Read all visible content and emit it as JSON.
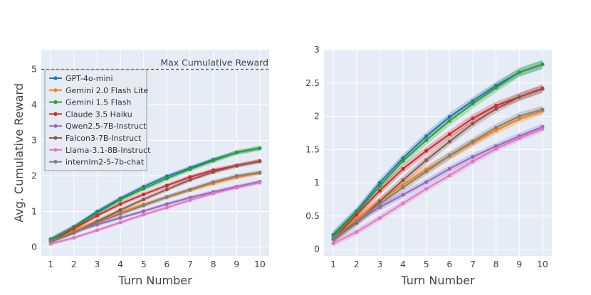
{
  "chart_data": [
    {
      "type": "line",
      "panel": "left",
      "xlabel": "Turn Number",
      "ylabel": "Avg. Cumulative Reward",
      "x": [
        1,
        2,
        3,
        4,
        5,
        6,
        7,
        8,
        9,
        10
      ],
      "xlim": [
        0.6,
        10.4
      ],
      "ylim": [
        -0.25,
        5.55
      ],
      "yticks": [
        0,
        1,
        2,
        3,
        4,
        5
      ],
      "xticks": [
        1,
        2,
        3,
        4,
        5,
        6,
        7,
        8,
        9,
        10
      ],
      "legend_position": "top-left",
      "reference_line": {
        "y": 5,
        "label": "Max Cumulative Reward"
      },
      "series_ref": "series"
    },
    {
      "type": "line",
      "panel": "right",
      "xlabel": "Turn Number",
      "ylabel": "",
      "x": [
        1,
        2,
        3,
        4,
        5,
        6,
        7,
        8,
        9,
        10
      ],
      "xlim": [
        0.6,
        10.4
      ],
      "ylim": [
        -0.1,
        3.0
      ],
      "yticks": [
        0,
        0.5,
        1,
        1.5,
        2,
        2.5,
        3
      ],
      "ytick_labels": [
        "0",
        "0.5",
        "1",
        "1.5",
        "2",
        "2.5",
        "3"
      ],
      "xticks": [
        1,
        2,
        3,
        4,
        5,
        6,
        7,
        8,
        9,
        10
      ],
      "series_ref": "series"
    }
  ],
  "series": [
    {
      "name": "GPT-4o-mini",
      "color": "#1f77b4",
      "values": [
        0.22,
        0.57,
        1.0,
        1.37,
        1.7,
        1.99,
        2.23,
        2.46,
        2.66,
        2.78
      ],
      "band": 0.06
    },
    {
      "name": "Gemini 2.0 Flash Lite",
      "color": "#ff7f0e",
      "values": [
        0.16,
        0.46,
        0.73,
        0.97,
        1.2,
        1.4,
        1.6,
        1.79,
        1.96,
        2.08
      ],
      "band": 0.06
    },
    {
      "name": "Gemini 1.5 Flash",
      "color": "#2ca02c",
      "values": [
        0.2,
        0.55,
        0.95,
        1.33,
        1.64,
        1.93,
        2.19,
        2.43,
        2.66,
        2.78
      ],
      "band": 0.07
    },
    {
      "name": "Claude 3.5 Haiku",
      "color": "#d62728",
      "values": [
        0.15,
        0.52,
        0.88,
        1.21,
        1.48,
        1.73,
        1.97,
        2.16,
        2.29,
        2.42
      ],
      "band": 0.06
    },
    {
      "name": "Qwen2.5-7B-Instruct",
      "color": "#9467bd",
      "values": [
        0.15,
        0.42,
        0.63,
        0.82,
        1.01,
        1.21,
        1.39,
        1.55,
        1.7,
        1.84
      ],
      "band": 0.05
    },
    {
      "name": "Falcon3-7B-Instruct",
      "color": "#8c564b",
      "values": [
        0.16,
        0.4,
        0.72,
        1.04,
        1.34,
        1.62,
        1.89,
        2.11,
        2.29,
        2.41
      ],
      "band": 0.06
    },
    {
      "name": "Llama-3.1-8B-Instruct",
      "color": "#e377c2",
      "values": [
        0.09,
        0.26,
        0.47,
        0.69,
        0.91,
        1.11,
        1.32,
        1.51,
        1.67,
        1.81
      ],
      "band": 0.05
    },
    {
      "name": "internlm2-5-7b-chat",
      "color": "#7f7f7f",
      "values": [
        0.17,
        0.42,
        0.68,
        0.93,
        1.17,
        1.41,
        1.62,
        1.83,
        2.0,
        2.1
      ],
      "band": 0.06
    }
  ]
}
